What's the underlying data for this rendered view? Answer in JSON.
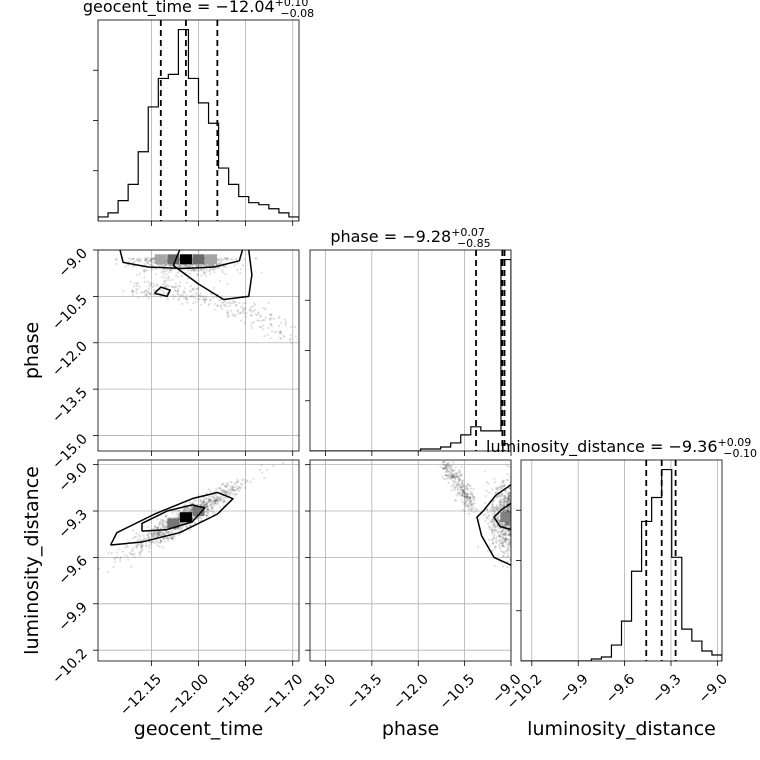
{
  "chart_data": {
    "type": "corner",
    "parameters": [
      "geocent_time",
      "phase",
      "luminosity_distance"
    ],
    "axis_labels": {
      "geocent_time": "geocent_time",
      "phase": "phase",
      "luminosity_distance": "luminosity_distance"
    },
    "ranges": {
      "geocent_time": [
        -12.32,
        -11.68
      ],
      "phase": [
        -15.5,
        -9.0
      ],
      "luminosity_distance": [
        -10.27,
        -8.97
      ]
    },
    "ticks": {
      "geocent_time": [
        -12.15,
        -12.0,
        -11.85,
        -11.7
      ],
      "phase": [
        -15.0,
        -13.5,
        -12.0,
        -10.5,
        -9.0
      ],
      "luminosity_distance": [
        -10.2,
        -9.9,
        -9.6,
        -9.3,
        -9.0
      ]
    },
    "tick_labels": {
      "geocent_time": [
        "−12.15",
        "−12.00",
        "−11.85",
        "−11.70"
      ],
      "phase": [
        "−15.0",
        "−13.5",
        "−12.0",
        "−10.5",
        "−9.0"
      ],
      "luminosity_distance": [
        "−10.2",
        "−9.9",
        "−9.6",
        "−9.3",
        "−9.0"
      ]
    },
    "titles": {
      "geocent_time": {
        "prefix": "geocent_time = −12.04",
        "plus": "+0.10",
        "minus": "−0.08"
      },
      "phase": {
        "prefix": "phase = −9.28",
        "plus": "+0.07",
        "minus": "−0.85"
      },
      "luminosity_distance": {
        "prefix": "luminosity_distance = −9.36",
        "plus": "+0.09",
        "minus": "−0.10"
      }
    },
    "quantiles": {
      "geocent_time": [
        -12.12,
        -12.04,
        -11.94
      ],
      "phase": [
        -10.13,
        -9.28,
        -9.21
      ],
      "luminosity_distance": [
        -9.46,
        -9.36,
        -9.27
      ]
    },
    "histograms": {
      "geocent_time": {
        "edges": [
          -12.32,
          -12.288,
          -12.256,
          -12.224,
          -12.192,
          -12.16,
          -12.128,
          -12.096,
          -12.064,
          -12.032,
          -12.0,
          -11.968,
          -11.936,
          -11.904,
          -11.872,
          -11.84,
          -11.808,
          -11.776,
          -11.744,
          -11.712,
          -11.68
        ],
        "counts": [
          2,
          4,
          10,
          18,
          34,
          56,
          70,
          72,
          94,
          70,
          58,
          48,
          26,
          18,
          12,
          9,
          8,
          6,
          4,
          2
        ]
      },
      "phase": {
        "edges": [
          -15.5,
          -15.175,
          -14.85,
          -14.525,
          -14.2,
          -13.875,
          -13.55,
          -13.225,
          -12.9,
          -12.575,
          -12.25,
          -11.925,
          -11.6,
          -11.275,
          -10.95,
          -10.625,
          -10.3,
          -9.975,
          -9.65,
          -9.325,
          -9.0
        ],
        "counts": [
          0,
          0,
          0,
          0,
          0,
          0,
          0,
          0,
          0,
          0,
          0,
          1,
          1,
          2,
          4,
          8,
          12,
          10,
          10,
          95
        ]
      },
      "luminosity_distance": {
        "edges": [
          -10.27,
          -10.205,
          -10.14,
          -10.075,
          -10.01,
          -9.945,
          -9.88,
          -9.815,
          -9.75,
          -9.685,
          -9.62,
          -9.555,
          -9.49,
          -9.425,
          -9.36,
          -9.295,
          -9.23,
          -9.165,
          -9.1,
          -9.035,
          -8.97
        ],
        "counts": [
          0,
          0,
          0,
          0,
          0,
          0,
          0,
          1,
          2,
          8,
          20,
          45,
          70,
          82,
          96,
          52,
          16,
          10,
          5,
          3
        ]
      }
    },
    "joint_2d": [
      {
        "x": "geocent_time",
        "y": "phase",
        "peak": [
          -12.04,
          -9.3
        ],
        "density_blocks": [
          {
            "x": -12.04,
            "y": -9.3,
            "level": 1.0
          },
          {
            "x": -12.08,
            "y": -9.3,
            "level": 0.55
          },
          {
            "x": -12.0,
            "y": -9.3,
            "level": 0.55
          },
          {
            "x": -12.12,
            "y": -9.3,
            "level": 0.3
          },
          {
            "x": -11.96,
            "y": -9.3,
            "level": 0.3
          }
        ],
        "contours": [
          [
            [
              -12.25,
              -9.0
            ],
            [
              -12.24,
              -9.4
            ],
            [
              -12.16,
              -9.55
            ],
            [
              -12.05,
              -9.6
            ],
            [
              -11.95,
              -9.55
            ],
            [
              -11.87,
              -9.35
            ],
            [
              -11.86,
              -9.0
            ]
          ],
          [
            [
              -12.06,
              -9.0
            ],
            [
              -12.08,
              -9.5
            ],
            [
              -12.0,
              -10.1
            ],
            [
              -11.92,
              -10.6
            ],
            [
              -11.84,
              -10.5
            ],
            [
              -11.83,
              -9.8
            ],
            [
              -11.84,
              -9.0
            ]
          ],
          [
            [
              -12.14,
              -10.4
            ],
            [
              -12.12,
              -10.2
            ],
            [
              -12.09,
              -10.3
            ],
            [
              -12.1,
              -10.5
            ],
            [
              -12.14,
              -10.4
            ]
          ]
        ]
      },
      {
        "x": "geocent_time",
        "y": "luminosity_distance",
        "peak": [
          -12.04,
          -9.34
        ],
        "density_blocks": [
          {
            "x": -12.04,
            "y": -9.34,
            "level": 1.0
          },
          {
            "x": -12.08,
            "y": -9.38,
            "level": 0.5
          },
          {
            "x": -12.0,
            "y": -9.3,
            "level": 0.5
          }
        ],
        "contours": [
          [
            [
              -12.28,
              -9.52
            ],
            [
              -12.18,
              -9.5
            ],
            [
              -12.06,
              -9.44
            ],
            [
              -11.94,
              -9.32
            ],
            [
              -11.89,
              -9.22
            ],
            [
              -11.94,
              -9.18
            ],
            [
              -12.02,
              -9.22
            ],
            [
              -12.14,
              -9.32
            ],
            [
              -12.26,
              -9.44
            ],
            [
              -12.28,
              -9.52
            ]
          ],
          [
            [
              -12.18,
              -9.43
            ],
            [
              -12.1,
              -9.42
            ],
            [
              -12.02,
              -9.37
            ],
            [
              -11.98,
              -9.28
            ],
            [
              -12.02,
              -9.26
            ],
            [
              -12.1,
              -9.3
            ],
            [
              -12.18,
              -9.38
            ],
            [
              -12.18,
              -9.43
            ]
          ]
        ]
      },
      {
        "x": "phase",
        "y": "luminosity_distance",
        "peak": [
          -9.05,
          -9.34
        ],
        "density_blocks": [
          {
            "x": -9.05,
            "y": -9.34,
            "level": 1.0
          },
          {
            "x": -9.15,
            "y": -9.34,
            "level": 0.45
          }
        ],
        "contours": [
          [
            [
              -9.0,
              -9.13
            ],
            [
              -9.5,
              -9.2
            ],
            [
              -9.9,
              -9.3
            ],
            [
              -10.1,
              -9.34
            ],
            [
              -9.95,
              -9.46
            ],
            [
              -9.55,
              -9.6
            ],
            [
              -9.0,
              -9.65
            ]
          ],
          [
            [
              -9.0,
              -9.25
            ],
            [
              -9.3,
              -9.29
            ],
            [
              -9.55,
              -9.34
            ],
            [
              -9.35,
              -9.4
            ],
            [
              -9.0,
              -9.42
            ]
          ]
        ]
      }
    ]
  }
}
